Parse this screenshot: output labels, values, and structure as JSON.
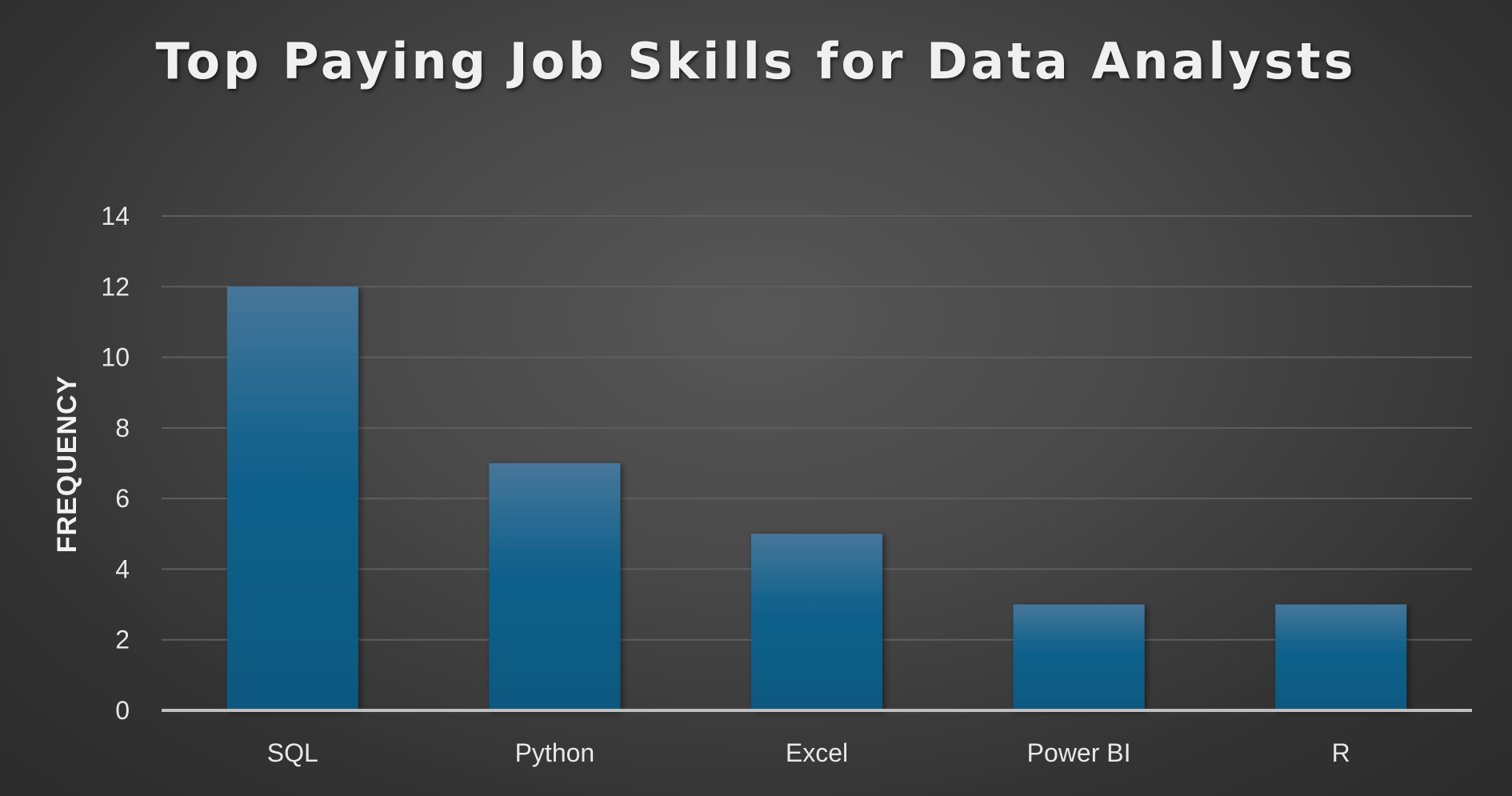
{
  "chart_data": {
    "type": "bar",
    "title": "Top Paying Job Skills for Data Analysts",
    "xlabel": "",
    "ylabel": "FREQUENCY",
    "categories": [
      "SQL",
      "Python",
      "Excel",
      "Power BI",
      "R"
    ],
    "values": [
      12,
      7,
      5,
      3,
      3
    ],
    "ylim": [
      0,
      14
    ],
    "yticks": [
      "0",
      "2",
      "4",
      "6",
      "8",
      "10",
      "12",
      "14"
    ],
    "grid": true,
    "legend": "none",
    "colors": {
      "bar_top": "#47769a",
      "bar_bottom": "#0a5880",
      "gridline": "#5e5e5e",
      "axis": "#bfbfbf"
    }
  }
}
